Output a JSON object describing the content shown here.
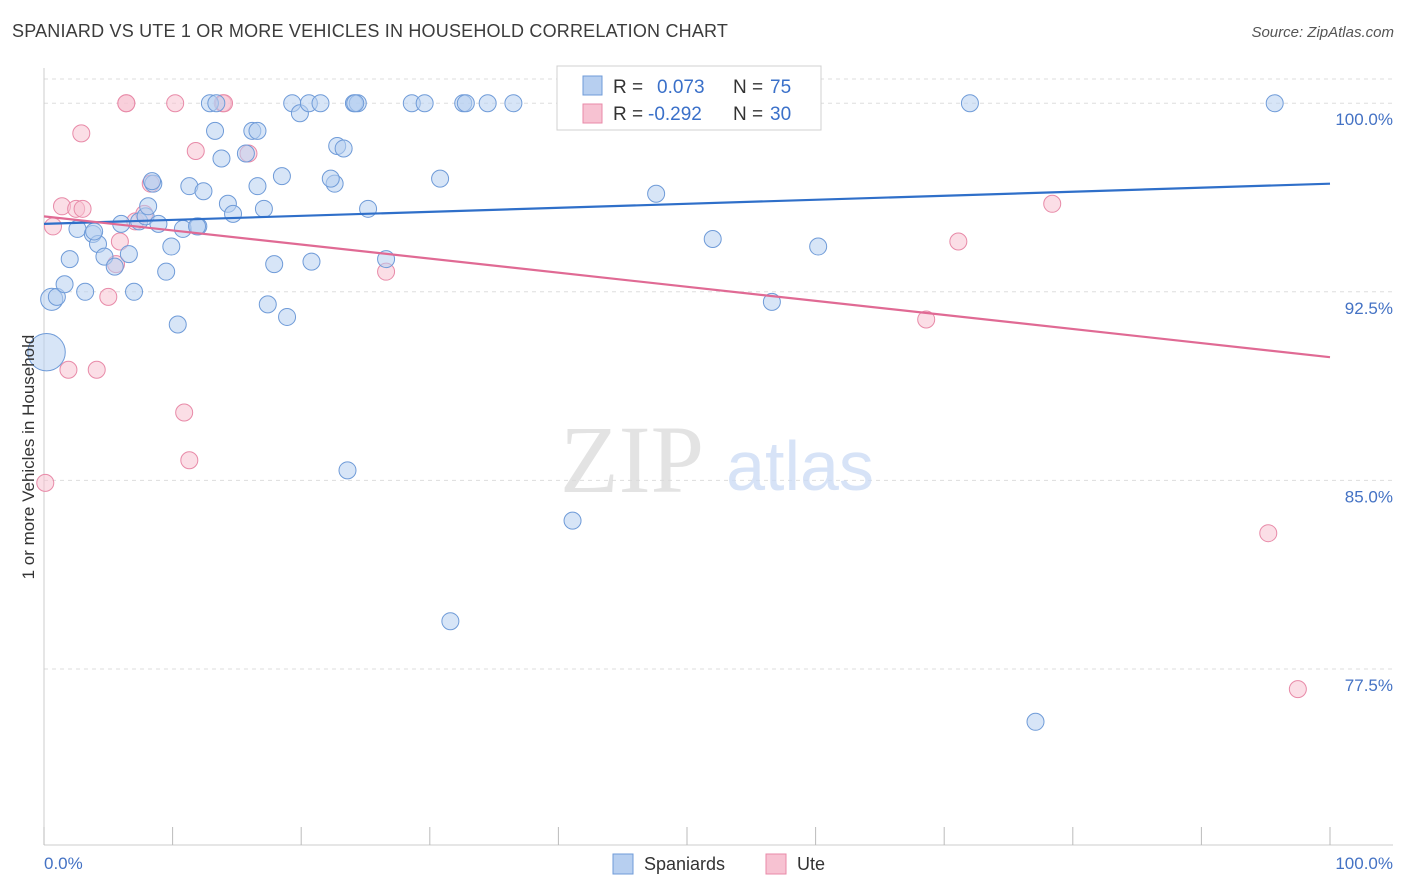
{
  "header": {
    "title": "SPANIARD VS UTE 1 OR MORE VEHICLES IN HOUSEHOLD CORRELATION CHART",
    "source": "Source: ZipAtlas.com"
  },
  "watermark": {
    "zip": "ZIP",
    "atlas": "atlas"
  },
  "legend": {
    "rows": [
      {
        "r_label": "R =",
        "r_value": "0.073",
        "n_label": "N =",
        "n_value": "75"
      },
      {
        "r_label": "R =",
        "r_value": "-0.292",
        "n_label": "N =",
        "n_value": "30"
      }
    ]
  },
  "bottom_legend": [
    "Spaniards",
    "Ute"
  ],
  "colors": {
    "spaniards_fill": "#b7cff0",
    "spaniards_stroke": "#6f9bd8",
    "spaniards_line": "#2f6fc9",
    "ute_fill": "#f7c2d2",
    "ute_stroke": "#e88aa8",
    "ute_line": "#e06a94",
    "tick_text": "#4472c4",
    "grid": "#dddddd"
  },
  "chart_data": {
    "type": "scatter",
    "title": "SPANIARD VS UTE 1 OR MORE VEHICLES IN HOUSEHOLD CORRELATION CHART",
    "xlabel": "",
    "ylabel": "1 or more Vehicles in Household",
    "xlim": [
      0,
      100
    ],
    "ylim": [
      70.5,
      101.4
    ],
    "x_tick_labels": [
      "0.0%",
      "100.0%"
    ],
    "y_ticks": [
      77.5,
      85.0,
      92.5,
      100.0
    ],
    "y_tick_labels": [
      "77.5%",
      "85.0%",
      "92.5%",
      "100.0%"
    ],
    "grid": true,
    "legend_position": "top-center",
    "series": [
      {
        "name": "Spaniards",
        "r": 0.073,
        "n": 75,
        "trend": {
          "x": [
            0,
            100
          ],
          "y": [
            95.2,
            96.8
          ]
        },
        "points": [
          [
            0.2,
            90.1,
            2.2
          ],
          [
            0.6,
            92.2,
            1.3
          ],
          [
            1.0,
            92.3,
            1.0
          ],
          [
            1.6,
            92.8,
            1.0
          ],
          [
            2.0,
            93.8,
            1.0
          ],
          [
            2.6,
            95.0,
            1.0
          ],
          [
            3.2,
            92.5,
            1.0
          ],
          [
            3.8,
            94.8,
            1.0
          ],
          [
            4.2,
            94.4,
            1.0
          ],
          [
            4.7,
            93.9,
            1.0
          ],
          [
            5.5,
            93.5,
            1.0
          ],
          [
            6.0,
            95.2,
            1.0
          ],
          [
            6.6,
            94.0,
            1.0
          ],
          [
            7.0,
            92.5,
            1.0
          ],
          [
            7.4,
            95.3,
            1.0
          ],
          [
            7.9,
            95.5,
            1.0
          ],
          [
            8.1,
            95.9,
            1.0
          ],
          [
            8.5,
            96.8,
            1.0
          ],
          [
            8.9,
            95.2,
            1.0
          ],
          [
            9.5,
            93.3,
            1.0
          ],
          [
            9.9,
            94.3,
            1.0
          ],
          [
            10.4,
            91.2,
            1.0
          ],
          [
            10.8,
            95.0,
            1.0
          ],
          [
            11.3,
            96.7,
            1.0
          ],
          [
            12.0,
            95.1,
            1.0
          ],
          [
            12.4,
            96.5,
            1.0
          ],
          [
            12.9,
            100.0,
            1.0
          ],
          [
            13.3,
            98.9,
            1.0
          ],
          [
            13.8,
            97.8,
            1.0
          ],
          [
            14.3,
            96.0,
            1.0
          ],
          [
            14.7,
            95.6,
            1.0
          ],
          [
            15.7,
            98.0,
            1.0
          ],
          [
            16.2,
            98.9,
            1.0
          ],
          [
            16.6,
            96.7,
            1.0
          ],
          [
            17.1,
            95.8,
            1.0
          ],
          [
            17.4,
            92.0,
            1.0
          ],
          [
            17.9,
            93.6,
            1.0
          ],
          [
            18.5,
            97.1,
            1.0
          ],
          [
            18.9,
            91.5,
            1.0
          ],
          [
            19.3,
            100.0,
            1.0
          ],
          [
            19.9,
            99.6,
            1.0
          ],
          [
            20.6,
            100.0,
            1.0
          ],
          [
            20.8,
            93.7,
            1.0
          ],
          [
            21.5,
            100.0,
            1.0
          ],
          [
            22.6,
            96.8,
            1.0
          ],
          [
            22.8,
            98.3,
            1.0
          ],
          [
            23.3,
            98.2,
            1.0
          ],
          [
            23.6,
            85.4,
            1.0
          ],
          [
            24.1,
            100.0,
            1.0
          ],
          [
            24.4,
            100.0,
            1.0
          ],
          [
            25.2,
            95.8,
            1.0
          ],
          [
            26.6,
            93.8,
            1.0
          ],
          [
            28.6,
            100.0,
            1.0
          ],
          [
            30.8,
            97.0,
            1.0
          ],
          [
            31.6,
            79.4,
            1.0
          ],
          [
            32.6,
            100.0,
            1.0
          ],
          [
            32.8,
            100.0,
            1.0
          ],
          [
            34.5,
            100.0,
            1.0
          ],
          [
            36.5,
            100.0,
            1.0
          ],
          [
            41.1,
            83.4,
            1.0
          ],
          [
            47.6,
            96.4,
            1.0
          ],
          [
            52.0,
            94.6,
            1.0
          ],
          [
            56.6,
            92.1,
            1.0
          ],
          [
            60.2,
            94.3,
            1.0
          ],
          [
            72.0,
            100.0,
            1.0
          ],
          [
            77.1,
            75.4,
            1.0
          ],
          [
            95.7,
            100.0,
            1.0
          ],
          [
            11.9,
            95.1,
            1.0
          ],
          [
            3.9,
            94.9,
            1.0
          ],
          [
            16.6,
            98.9,
            1.0
          ],
          [
            24.2,
            100.0,
            1.0
          ],
          [
            29.6,
            100.0,
            1.0
          ],
          [
            13.4,
            100.0,
            1.0
          ],
          [
            22.3,
            97.0,
            1.0
          ],
          [
            8.4,
            96.9,
            1.0
          ]
        ]
      },
      {
        "name": "Ute",
        "r": -0.292,
        "n": 30,
        "trend": {
          "x": [
            0,
            100
          ],
          "y": [
            95.5,
            89.9
          ]
        },
        "points": [
          [
            0.1,
            84.9
          ],
          [
            0.7,
            95.1
          ],
          [
            1.4,
            95.9
          ],
          [
            1.9,
            89.4
          ],
          [
            2.5,
            95.8
          ],
          [
            2.9,
            98.8
          ],
          [
            4.1,
            89.4
          ],
          [
            5.0,
            92.3
          ],
          [
            5.6,
            93.6
          ],
          [
            5.9,
            94.5
          ],
          [
            6.4,
            100.0
          ],
          [
            7.1,
            95.3
          ],
          [
            7.8,
            95.6
          ],
          [
            8.3,
            96.8
          ],
          [
            10.2,
            100.0
          ],
          [
            10.9,
            87.7
          ],
          [
            11.3,
            85.8
          ],
          [
            11.8,
            98.1
          ],
          [
            13.9,
            100.0
          ],
          [
            15.9,
            98.0
          ],
          [
            26.6,
            93.3
          ],
          [
            54.0,
            100.0
          ],
          [
            68.6,
            91.4
          ],
          [
            71.1,
            94.5
          ],
          [
            78.4,
            96.0
          ],
          [
            95.2,
            82.9
          ],
          [
            97.5,
            76.7
          ],
          [
            14.0,
            100.0
          ],
          [
            6.4,
            100.0
          ],
          [
            3.0,
            95.8
          ]
        ]
      }
    ]
  }
}
